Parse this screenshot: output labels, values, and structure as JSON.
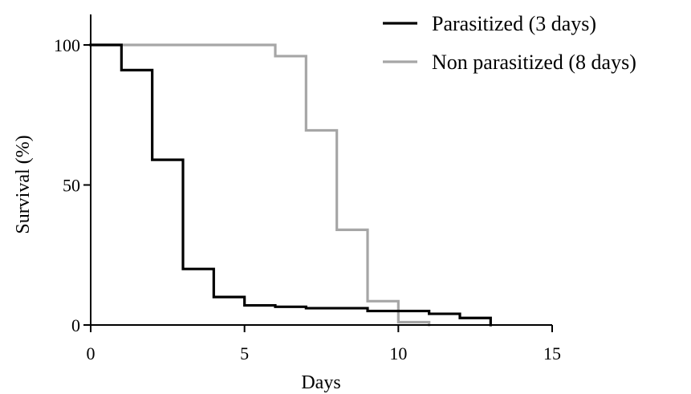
{
  "chart_data": {
    "type": "line",
    "step": true,
    "xlabel": "Days",
    "ylabel": "Survival (%)",
    "xlim": [
      0,
      15
    ],
    "ylim": [
      0,
      100
    ],
    "xticks": [
      0,
      5,
      10,
      15
    ],
    "yticks": [
      0,
      50,
      100
    ],
    "grid": false,
    "legend_position": "top-right",
    "series": [
      {
        "name": "Parasitized (3 days)",
        "color": "#000000",
        "x": [
          0,
          1,
          2,
          3,
          4,
          5,
          6,
          7,
          9,
          11,
          12,
          13
        ],
        "y": [
          100,
          91,
          59,
          20,
          10,
          7,
          6.5,
          6,
          5,
          4,
          2.5,
          0
        ]
      },
      {
        "name": "Non parasitized (8 days)",
        "color": "#a6a6a6",
        "x": [
          0,
          6,
          7,
          8,
          9,
          10,
          11
        ],
        "y": [
          100,
          96,
          69.5,
          34,
          8.5,
          1,
          0
        ]
      }
    ]
  }
}
